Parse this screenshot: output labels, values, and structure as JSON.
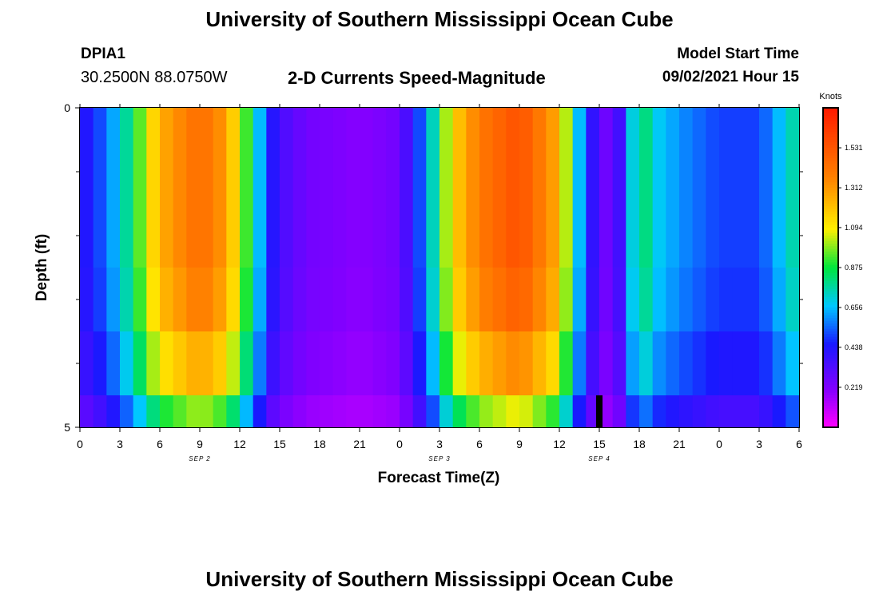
{
  "header": {
    "title": "University of Southern Mississippi Ocean Cube",
    "station_id": "DPIA1",
    "coords": "30.2500N  88.0750W",
    "subtitle": "2-D Currents Speed-Magnitude",
    "model_start_label": "Model Start Time",
    "model_start_value": "09/02/2021 Hour 15"
  },
  "footer": {
    "title": "University of Southern Mississippi Ocean Cube"
  },
  "chart_data": {
    "type": "heatmap",
    "title": "2-D Currents Speed-Magnitude",
    "xlabel": "Forecast Time(Z)",
    "ylabel": "Depth (ft)",
    "x_tick_labels": [
      "0",
      "3",
      "6",
      "9",
      "12",
      "15",
      "18",
      "21",
      "0",
      "3",
      "6",
      "9",
      "12",
      "15",
      "18",
      "21",
      "0",
      "3",
      "6"
    ],
    "x_dates": [
      {
        "label": "SEP 2",
        "tick_index": 6
      },
      {
        "label": "SEP 3",
        "tick_index": 18
      },
      {
        "label": "SEP 4",
        "tick_index": 26
      }
    ],
    "y_tick_labels": [
      {
        "value": 0,
        "label": "0"
      },
      {
        "value": 5,
        "label": "5"
      }
    ],
    "ylim": [
      0,
      5
    ],
    "y_minor_ticks": [
      1,
      2,
      3,
      4
    ],
    "n_hours": 54,
    "n_bins": 5,
    "row_amplitude": [
      1.0,
      1.0,
      1.0,
      0.97,
      0.88,
      0.7
    ],
    "anchors": [
      {
        "h": 0,
        "v": 0.4
      },
      {
        "h": 2,
        "v": 0.55
      },
      {
        "h": 4,
        "v": 0.85
      },
      {
        "h": 6,
        "v": 1.25
      },
      {
        "h": 9,
        "v": 1.45
      },
      {
        "h": 11,
        "v": 1.3
      },
      {
        "h": 13,
        "v": 0.8
      },
      {
        "h": 14,
        "v": 0.5
      },
      {
        "h": 15,
        "v": 0.35
      },
      {
        "h": 17,
        "v": 0.25
      },
      {
        "h": 21,
        "v": 0.2
      },
      {
        "h": 24,
        "v": 0.25
      },
      {
        "h": 26,
        "v": 0.6
      },
      {
        "h": 28,
        "v": 1.15
      },
      {
        "h": 30,
        "v": 1.4
      },
      {
        "h": 33,
        "v": 1.55
      },
      {
        "h": 36,
        "v": 1.25
      },
      {
        "h": 37,
        "v": 0.8
      },
      {
        "h": 38,
        "v": 0.5
      },
      {
        "h": 39,
        "v": 0.3
      },
      {
        "h": 40,
        "v": 0.22
      },
      {
        "h": 41,
        "v": 0.5
      },
      {
        "h": 42,
        "v": 0.9
      },
      {
        "h": 43,
        "v": 0.7
      },
      {
        "h": 45,
        "v": 0.6
      },
      {
        "h": 48,
        "v": 0.5
      },
      {
        "h": 51,
        "v": 0.5
      },
      {
        "h": 54,
        "v": 0.8
      }
    ],
    "current_time_marker_hour": 39,
    "colorbar": {
      "unit": "Knots",
      "min": 0,
      "max": 1.75,
      "labels": [
        "1.531",
        "1.312",
        "1.094",
        "0.875",
        "0.656",
        "0.438",
        "0.219"
      ]
    }
  }
}
